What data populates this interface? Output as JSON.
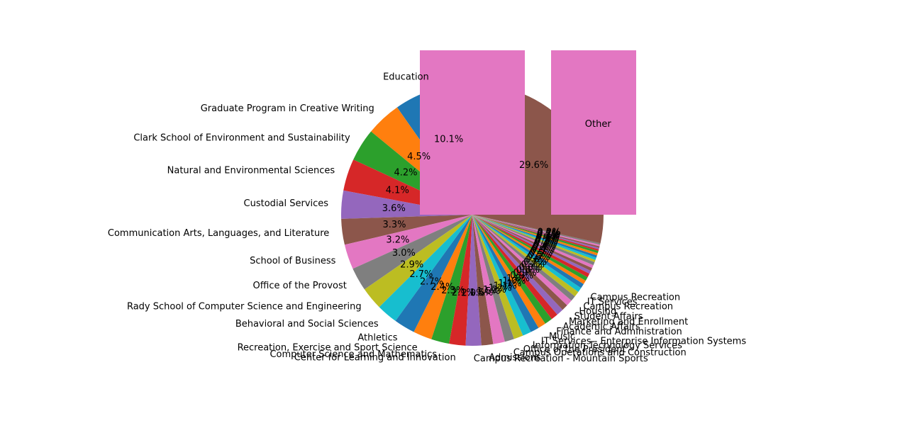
{
  "chart_data": {
    "type": "pie",
    "title": "",
    "legend": "none",
    "labels_outside": true,
    "percent_labels_inside": true,
    "slices": [
      {
        "label": "Education",
        "value": 10.1,
        "pct_label": "10.1%",
        "color": "#1f77b4"
      },
      {
        "label": "Graduate Program in Creative Writing",
        "value": 4.5,
        "pct_label": "4.5%",
        "color": "#ff7f0e"
      },
      {
        "label": "Clark School of Environment and Sustainability",
        "value": 4.2,
        "pct_label": "4.2%",
        "color": "#2ca02c"
      },
      {
        "label": "Natural and Environmental Sciences",
        "value": 4.1,
        "pct_label": "4.1%",
        "color": "#d62728"
      },
      {
        "label": "Custodial Services",
        "value": 3.6,
        "pct_label": "3.6%",
        "color": "#9467bd"
      },
      {
        "label": "Communication Arts, Languages, and Literature",
        "value": 3.3,
        "pct_label": "3.3%",
        "color": "#8c564b"
      },
      {
        "label": "School of Business",
        "value": 3.2,
        "pct_label": "3.2%",
        "color": "#e377c2"
      },
      {
        "label": "Office of the Provost",
        "value": 3.0,
        "pct_label": "3.0%",
        "color": "#7f7f7f"
      },
      {
        "label": "Rady School of Computer Science and Engineering",
        "value": 2.9,
        "pct_label": "2.9%",
        "color": "#bcbd22"
      },
      {
        "label": "Behavioral and Social Sciences",
        "value": 2.7,
        "pct_label": "2.7%",
        "color": "#17becf"
      },
      {
        "label": "Athletics",
        "value": 2.7,
        "pct_label": "2.7%",
        "color": "#1f77b4"
      },
      {
        "label": "Recreation, Exercise and Sport Science",
        "value": 2.4,
        "pct_label": "2.4%",
        "color": "#ff7f0e"
      },
      {
        "label": "Computer Science and Mathematics",
        "value": 2.3,
        "pct_label": "2.3%",
        "color": "#2ca02c"
      },
      {
        "label": "Center for Learning and Innovation",
        "value": 2.1,
        "pct_label": "2.1%",
        "color": "#d62728"
      },
      {
        "label": "Campus Recreation - Mountain Sports",
        "value": 2.0,
        "pct_label": "2.0%",
        "color": "#9467bd"
      },
      {
        "label": "Admissions",
        "value": 1.5,
        "pct_label": "1.5%",
        "color": "#8c564b"
      },
      {
        "label": "",
        "value": 1.5,
        "pct_label": "1.5%",
        "color": "#e377c2"
      },
      {
        "label": "Campus Operations and Construction",
        "value": 1.2,
        "pct_label": "1.2%",
        "color": "#7f7f7f"
      },
      {
        "label": "Office of the President",
        "value": 1.2,
        "pct_label": "1.2%",
        "color": "#bcbd22"
      },
      {
        "label": "Information Technology Services",
        "value": 1.1,
        "pct_label": "1.1%",
        "color": "#17becf"
      },
      {
        "label": "IT Services - Enterprise Information Systems",
        "value": 1.1,
        "pct_label": "1.1%",
        "color": "#1f77b4"
      },
      {
        "label": "Music",
        "value": 1.0,
        "pct_label": "1.0%",
        "color": "#ff7f0e"
      },
      {
        "label": "Finance and Administration",
        "value": 1.0,
        "pct_label": "1.0%",
        "color": "#2ca02c"
      },
      {
        "label": "Academic Affairs",
        "value": 0.9,
        "pct_label": "0.9%",
        "color": "#d62728"
      },
      {
        "label": "Marketing and Enrollment",
        "value": 0.9,
        "pct_label": "0.9%",
        "color": "#9467bd"
      },
      {
        "label": "Student Affairs",
        "value": 0.8,
        "pct_label": "0.8%",
        "color": "#8c564b"
      },
      {
        "label": "Housing",
        "value": 0.8,
        "pct_label": "0.8%",
        "color": "#e377c2"
      },
      {
        "label": "Campus Recreation",
        "value": 0.7,
        "pct_label": "0.7%",
        "color": "#7f7f7f"
      },
      {
        "label": "IT Services",
        "value": 0.7,
        "pct_label": "0.7%",
        "color": "#bcbd22"
      },
      {
        "label": "Campus Recreation",
        "value": 0.6,
        "pct_label": "0.6%",
        "color": "#17becf"
      },
      {
        "label": "",
        "value": 0.6,
        "pct_label": "0.6%",
        "color": "#1f77b4"
      },
      {
        "label": "",
        "value": 0.5,
        "pct_label": "0.5%",
        "color": "#ff7f0e"
      },
      {
        "label": "",
        "value": 0.5,
        "pct_label": "0.5%",
        "color": "#2ca02c"
      },
      {
        "label": "",
        "value": 0.5,
        "pct_label": "0.5%",
        "color": "#d62728"
      },
      {
        "label": "",
        "value": 0.4,
        "pct_label": "0.4%",
        "color": "#9467bd"
      },
      {
        "label": "",
        "value": 0.4,
        "pct_label": "0.4%",
        "color": "#8c564b"
      },
      {
        "label": "",
        "value": 0.4,
        "pct_label": "0.4%",
        "color": "#e377c2"
      },
      {
        "label": "",
        "value": 0.4,
        "pct_label": "0.4%",
        "color": "#7f7f7f"
      },
      {
        "label": "",
        "value": 0.3,
        "pct_label": "0.3%",
        "color": "#bcbd22"
      },
      {
        "label": "",
        "value": 0.3,
        "pct_label": "0.3%",
        "color": "#17becf"
      },
      {
        "label": "",
        "value": 0.3,
        "pct_label": "0.3%",
        "color": "#1f77b4"
      },
      {
        "label": "",
        "value": 0.3,
        "pct_label": "0.3%",
        "color": "#ff7f0e"
      },
      {
        "label": "",
        "value": 0.3,
        "pct_label": "0.3%",
        "color": "#2ca02c"
      },
      {
        "label": "",
        "value": 0.2,
        "pct_label": "0.2%",
        "color": "#d62728"
      },
      {
        "label": "",
        "value": 0.2,
        "pct_label": "0.2%",
        "color": "#9467bd"
      },
      {
        "label": "",
        "value": 0.2,
        "pct_label": "0.2%",
        "color": "#8c564b"
      },
      {
        "label": "",
        "value": 0.2,
        "pct_label": "0.2%",
        "color": "#e377c2"
      },
      {
        "label": "",
        "value": 0.2,
        "pct_label": "0.2%",
        "color": "#7f7f7f"
      },
      {
        "label": "Other",
        "value": 29.6,
        "pct_label": "29.6%",
        "color": "#8c564b"
      }
    ],
    "overlay_rect_color": "#e377c2"
  }
}
